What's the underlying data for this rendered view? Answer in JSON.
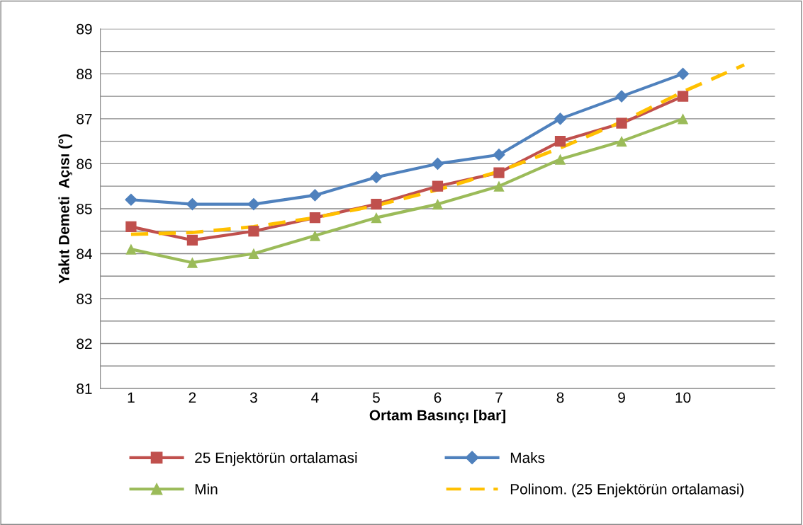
{
  "chart_data": {
    "type": "line",
    "xlabel": "Ortam Basınçı [bar]",
    "ylabel": "Yakıt Demeti  Açısı (°)",
    "x": [
      1,
      2,
      3,
      4,
      5,
      6,
      7,
      8,
      9,
      10
    ],
    "xlim": [
      0.5,
      11.5
    ],
    "xticks": [
      1,
      2,
      3,
      4,
      5,
      6,
      7,
      8,
      9,
      10
    ],
    "ylim": [
      81,
      89
    ],
    "yticks": [
      81,
      {
        "value": 81.5,
        "label": null
      },
      82,
      {
        "value": 82.5,
        "label": null
      },
      83,
      {
        "value": 83.5,
        "label": null
      },
      84,
      {
        "value": 84.5,
        "label": null
      },
      85,
      {
        "value": 85.5,
        "label": null
      },
      86,
      {
        "value": 86.5,
        "label": null
      },
      87,
      {
        "value": 87.5,
        "label": null
      },
      88,
      {
        "value": 88.5,
        "label": null
      },
      89
    ],
    "grid": "y",
    "legend": "bottom",
    "series": [
      {
        "name": "25 Enjektörün ortalamasi",
        "color": "#c0504d",
        "marker": "square",
        "line_style": "solid",
        "values": [
          84.6,
          84.3,
          84.5,
          84.8,
          85.1,
          85.5,
          85.8,
          86.5,
          86.9,
          87.5
        ]
      },
      {
        "name": "Maks",
        "color": "#4f81bd",
        "marker": "diamond",
        "line_style": "solid",
        "values": [
          85.2,
          85.1,
          85.1,
          85.3,
          85.7,
          86.0,
          86.2,
          87.0,
          87.5,
          88.0
        ]
      },
      {
        "name": "Min",
        "color": "#9bbb59",
        "marker": "triangle",
        "line_style": "solid",
        "values": [
          84.1,
          83.8,
          84.0,
          84.4,
          84.8,
          85.1,
          85.5,
          86.1,
          86.5,
          87.0
        ]
      },
      {
        "name": "Polinom. (25 Enjektörün ortalamasi)",
        "color": "#ffc000",
        "marker": "none",
        "line_style": "dashed",
        "x": [
          1,
          2,
          3,
          4,
          5,
          6,
          7,
          8,
          9,
          10,
          11
        ],
        "values": [
          84.43,
          84.47,
          84.6,
          84.8,
          85.07,
          85.42,
          85.83,
          86.35,
          86.93,
          87.6,
          88.2
        ]
      }
    ]
  }
}
